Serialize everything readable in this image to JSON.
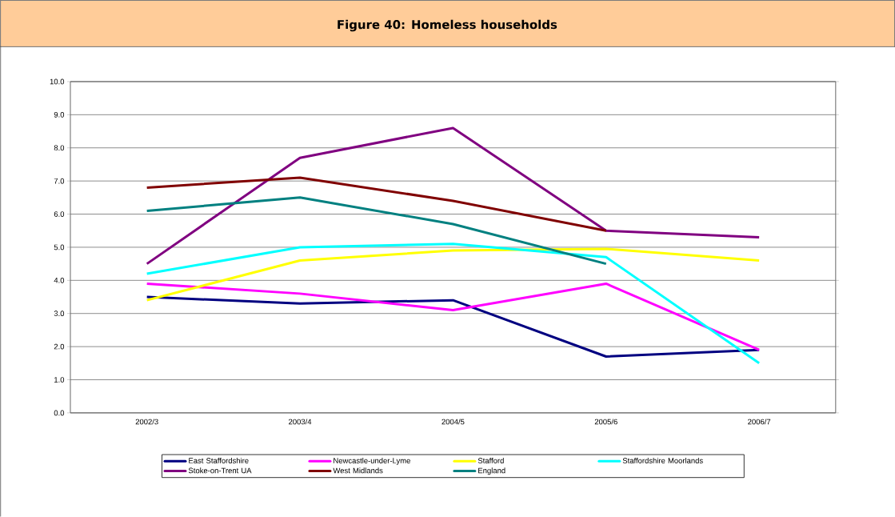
{
  "chart_data": {
    "type": "line",
    "title": "Figure 40: Homeless households",
    "categories": [
      "2002/3",
      "2003/4",
      "2004/5",
      "2005/6",
      "2006/7"
    ],
    "series": [
      {
        "name": "East Staffordshire",
        "color": "#000080",
        "values": [
          3.5,
          3.3,
          3.4,
          1.7,
          1.9
        ]
      },
      {
        "name": "Newcastle-under-Lyme",
        "color": "#ff00ff",
        "values": [
          3.9,
          3.6,
          3.1,
          3.9,
          1.9
        ]
      },
      {
        "name": "Stafford",
        "color": "#ffff00",
        "values": [
          3.4,
          4.6,
          4.9,
          4.95,
          4.6
        ]
      },
      {
        "name": "Staffordshire Moorlands",
        "color": "#00ffff",
        "values": [
          4.2,
          5.0,
          5.1,
          4.7,
          1.5
        ]
      },
      {
        "name": "Stoke-on-Trent UA",
        "color": "#800080",
        "values": [
          4.5,
          7.7,
          8.6,
          5.5,
          5.3
        ]
      },
      {
        "name": "West Midlands",
        "color": "#800000",
        "values": [
          6.8,
          7.1,
          6.4,
          5.5,
          null
        ]
      },
      {
        "name": "England",
        "color": "#008080",
        "values": [
          6.1,
          6.5,
          5.7,
          4.5,
          null
        ]
      }
    ],
    "ylim": [
      0,
      10
    ],
    "yticks": [
      {
        "value": 0,
        "label": "0.0"
      },
      {
        "value": 1,
        "label": "1.0"
      },
      {
        "value": 2,
        "label": "2.0"
      },
      {
        "value": 3,
        "label": "3.0"
      },
      {
        "value": 4,
        "label": "4.0"
      },
      {
        "value": 5,
        "label": "5.0"
      },
      {
        "value": 6,
        "label": "6.0"
      },
      {
        "value": 7,
        "label": "7.0"
      },
      {
        "value": 8,
        "label": "8.0"
      },
      {
        "value": 9,
        "label": "9.0"
      },
      {
        "value": 10,
        "label": "10.0"
      }
    ],
    "grid": "y",
    "legend": "bottom",
    "line_style": "solid"
  }
}
